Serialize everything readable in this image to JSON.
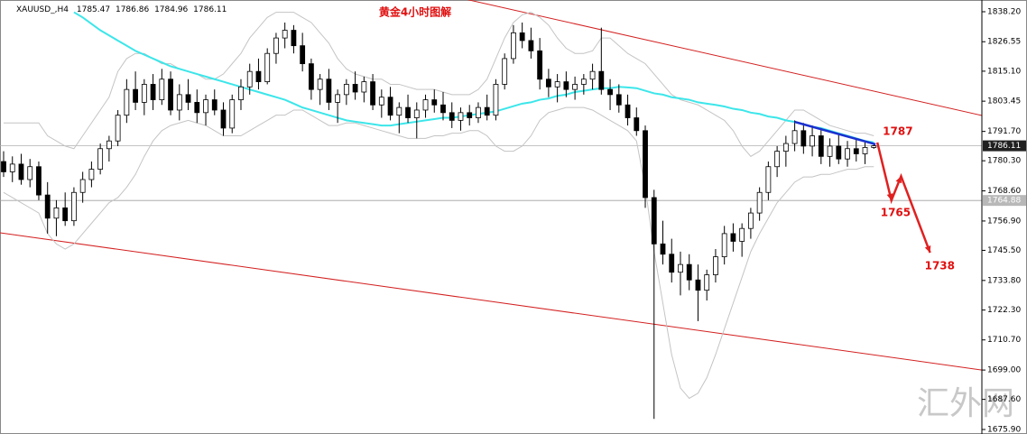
{
  "chart_data": {
    "type": "candlestick",
    "title": "黄金4小时图解",
    "symbol": "XAUUSD_,H4",
    "candles": [
      [
        1780,
        1784,
        1774,
        1776
      ],
      [
        1776,
        1782,
        1772,
        1779
      ],
      [
        1779,
        1783,
        1771,
        1773
      ],
      [
        1773,
        1781,
        1770,
        1778
      ],
      [
        1778,
        1780,
        1765,
        1767
      ],
      [
        1767,
        1772,
        1752,
        1758
      ],
      [
        1758,
        1765,
        1751,
        1762
      ],
      [
        1762,
        1768,
        1755,
        1757
      ],
      [
        1757,
        1770,
        1755,
        1768
      ],
      [
        1768,
        1776,
        1764,
        1773
      ],
      [
        1773,
        1780,
        1770,
        1777
      ],
      [
        1777,
        1787,
        1775,
        1785
      ],
      [
        1785,
        1790,
        1780,
        1788
      ],
      [
        1788,
        1800,
        1786,
        1798
      ],
      [
        1798,
        1812,
        1795,
        1808
      ],
      [
        1808,
        1815,
        1800,
        1803
      ],
      [
        1803,
        1812,
        1798,
        1810
      ],
      [
        1810,
        1814,
        1800,
        1804
      ],
      [
        1804,
        1816,
        1802,
        1812
      ],
      [
        1812,
        1815,
        1798,
        1800
      ],
      [
        1800,
        1810,
        1796,
        1806
      ],
      [
        1806,
        1812,
        1800,
        1803
      ],
      [
        1803,
        1808,
        1795,
        1799
      ],
      [
        1799,
        1806,
        1794,
        1804
      ],
      [
        1804,
        1808,
        1798,
        1800
      ],
      [
        1800,
        1803,
        1790,
        1793
      ],
      [
        1793,
        1806,
        1791,
        1804
      ],
      [
        1804,
        1812,
        1800,
        1809
      ],
      [
        1809,
        1818,
        1806,
        1815
      ],
      [
        1815,
        1820,
        1808,
        1811
      ],
      [
        1811,
        1824,
        1810,
        1822
      ],
      [
        1822,
        1830,
        1818,
        1828
      ],
      [
        1828,
        1834,
        1824,
        1831
      ],
      [
        1831,
        1833,
        1822,
        1825
      ],
      [
        1825,
        1830,
        1815,
        1818
      ],
      [
        1818,
        1820,
        1804,
        1808
      ],
      [
        1808,
        1814,
        1802,
        1812
      ],
      [
        1812,
        1816,
        1800,
        1803
      ],
      [
        1803,
        1808,
        1795,
        1806
      ],
      [
        1806,
        1812,
        1802,
        1810
      ],
      [
        1810,
        1815,
        1804,
        1807
      ],
      [
        1807,
        1813,
        1803,
        1811
      ],
      [
        1811,
        1814,
        1800,
        1802
      ],
      [
        1802,
        1808,
        1797,
        1805
      ],
      [
        1805,
        1809,
        1796,
        1798
      ],
      [
        1798,
        1803,
        1791,
        1801
      ],
      [
        1801,
        1806,
        1795,
        1797
      ],
      [
        1797,
        1803,
        1789,
        1800
      ],
      [
        1800,
        1806,
        1797,
        1804
      ],
      [
        1804,
        1808,
        1799,
        1802
      ],
      [
        1802,
        1807,
        1796,
        1799
      ],
      [
        1799,
        1803,
        1793,
        1796
      ],
      [
        1796,
        1801,
        1792,
        1799
      ],
      [
        1799,
        1802,
        1794,
        1797
      ],
      [
        1797,
        1803,
        1795,
        1801
      ],
      [
        1801,
        1806,
        1796,
        1798
      ],
      [
        1798,
        1812,
        1796,
        1810
      ],
      [
        1810,
        1822,
        1808,
        1820
      ],
      [
        1820,
        1833,
        1818,
        1830
      ],
      [
        1830,
        1834,
        1824,
        1827
      ],
      [
        1827,
        1832,
        1820,
        1823
      ],
      [
        1823,
        1828,
        1808,
        1812
      ],
      [
        1812,
        1816,
        1805,
        1809
      ],
      [
        1809,
        1814,
        1803,
        1811
      ],
      [
        1811,
        1815,
        1805,
        1808
      ],
      [
        1808,
        1813,
        1804,
        1810
      ],
      [
        1810,
        1814,
        1806,
        1812
      ],
      [
        1812,
        1818,
        1808,
        1815
      ],
      [
        1815,
        1832,
        1806,
        1808
      ],
      [
        1808,
        1812,
        1800,
        1806
      ],
      [
        1806,
        1810,
        1799,
        1802
      ],
      [
        1802,
        1806,
        1794,
        1797
      ],
      [
        1797,
        1801,
        1790,
        1792
      ],
      [
        1792,
        1794,
        1762,
        1766
      ],
      [
        1766,
        1769,
        1680,
        1748
      ],
      [
        1748,
        1757,
        1740,
        1744
      ],
      [
        1744,
        1750,
        1733,
        1737
      ],
      [
        1737,
        1745,
        1728,
        1740
      ],
      [
        1740,
        1744,
        1730,
        1734
      ],
      [
        1734,
        1740,
        1718,
        1730
      ],
      [
        1730,
        1738,
        1726,
        1736
      ],
      [
        1736,
        1746,
        1733,
        1743
      ],
      [
        1743,
        1755,
        1740,
        1752
      ],
      [
        1752,
        1756,
        1745,
        1749
      ],
      [
        1749,
        1756,
        1743,
        1754
      ],
      [
        1754,
        1762,
        1750,
        1760
      ],
      [
        1760,
        1770,
        1757,
        1768
      ],
      [
        1768,
        1780,
        1765,
        1778
      ],
      [
        1778,
        1786,
        1774,
        1784
      ],
      [
        1784,
        1790,
        1778,
        1787
      ],
      [
        1787,
        1796,
        1784,
        1792
      ],
      [
        1792,
        1795,
        1783,
        1786
      ],
      [
        1786,
        1794,
        1782,
        1790
      ],
      [
        1790,
        1793,
        1779,
        1782
      ],
      [
        1782,
        1789,
        1778,
        1786
      ],
      [
        1786,
        1791,
        1779,
        1781
      ],
      [
        1781,
        1788,
        1778,
        1785
      ],
      [
        1785,
        1789,
        1780,
        1783
      ],
      [
        1783,
        1788,
        1779,
        1785.47
      ],
      [
        1785.47,
        1786.86,
        1784.96,
        1786.11
      ]
    ],
    "ma": {
      "color": "#3ce6ea",
      "values": [
        null,
        null,
        null,
        null,
        null,
        null,
        null,
        null,
        1838,
        1836,
        1833.5,
        1831,
        1829,
        1827,
        1825,
        1823,
        1821.5,
        1820,
        1818.5,
        1817,
        1816,
        1815,
        1814,
        1813,
        1812,
        1811,
        1810,
        1809,
        1808,
        1807,
        1806,
        1805,
        1804,
        1802.5,
        1801,
        1800,
        1799,
        1798,
        1797,
        1796,
        1795.5,
        1795,
        1794.5,
        1794,
        1794,
        1794.5,
        1795,
        1795.5,
        1796,
        1796.5,
        1797,
        1797,
        1797.5,
        1798,
        1798.5,
        1799,
        1799.5,
        1800.5,
        1801.5,
        1802.5,
        1803,
        1804,
        1804.5,
        1805.5,
        1806,
        1807,
        1807.5,
        1808,
        1808.5,
        1808.5,
        1809,
        1808.8,
        1808.5,
        1807.5,
        1806.5,
        1806,
        1805,
        1804.5,
        1804,
        1803,
        1802.5,
        1802,
        1801.4,
        1800.5,
        1800,
        1799,
        1798.5,
        1797.5,
        1797,
        1796,
        1795.4,
        1794.5,
        1793.5,
        1793,
        1792,
        1791,
        1790,
        1789,
        1788,
        1787.4
      ]
    },
    "bands": {
      "color": "#c4c4c4",
      "upper": [
        1795,
        1795,
        1795,
        1795,
        1795,
        1790,
        1788,
        1786,
        1785,
        1790,
        1795,
        1800,
        1805,
        1815,
        1820,
        1822,
        1822,
        1820,
        1818,
        1818,
        1816,
        1815,
        1814,
        1812,
        1812,
        1814,
        1818,
        1822,
        1828,
        1832,
        1836,
        1838,
        1838,
        1838,
        1836,
        1834,
        1830,
        1826,
        1820,
        1816,
        1814,
        1813,
        1812,
        1812,
        1810,
        1810,
        1809,
        1808,
        1808,
        1808,
        1807,
        1806,
        1806,
        1806,
        1808,
        1812,
        1820,
        1828,
        1834,
        1837,
        1838,
        1836,
        1833,
        1828,
        1824,
        1822,
        1822,
        1823,
        1828,
        1828,
        1825,
        1822,
        1820,
        1818,
        1814,
        1810,
        1806,
        1804,
        1803,
        1802,
        1800,
        1798,
        1796,
        1792,
        1786,
        1782,
        1784,
        1788,
        1792,
        1796,
        1800,
        1800,
        1798,
        1796,
        1794,
        1793,
        1792,
        1791,
        1791,
        1790
      ],
      "lower": [
        1768,
        1766,
        1764,
        1762,
        1760,
        1752,
        1748,
        1746,
        1748,
        1752,
        1756,
        1760,
        1764,
        1766,
        1770,
        1775,
        1782,
        1788,
        1792,
        1794,
        1795,
        1796,
        1795,
        1794,
        1792,
        1790,
        1790,
        1790,
        1792,
        1794,
        1796,
        1798,
        1798,
        1800,
        1800,
        1798,
        1796,
        1794,
        1794,
        1795,
        1795,
        1794,
        1793,
        1792,
        1791,
        1790,
        1789,
        1789,
        1789,
        1790,
        1790,
        1791,
        1791,
        1792,
        1792,
        1790,
        1786,
        1784,
        1784,
        1786,
        1790,
        1796,
        1799,
        1800,
        1801,
        1801,
        1801,
        1800,
        1798,
        1796,
        1794,
        1792,
        1788,
        1770,
        1745,
        1725,
        1705,
        1692,
        1688,
        1690,
        1696,
        1705,
        1715,
        1725,
        1735,
        1745,
        1752,
        1758,
        1764,
        1768,
        1772,
        1774,
        1774,
        1775,
        1775,
        1776,
        1777,
        1777,
        1778,
        1778
      ]
    },
    "channel": {
      "color": "#d42020",
      "lines": [
        [
          1883.8,
          1797.9
        ],
        [
          1752.3,
          1699.0
        ]
      ]
    },
    "trendline": {
      "color": "#1a2fd0",
      "x": [
        90,
        99.2
      ],
      "y": [
        1795.4,
        1786.7
      ]
    },
    "forecast": {
      "color": "#e02020",
      "x": [
        99.4,
        101,
        102.1,
        105.4
      ],
      "y": [
        1787.4,
        1764.9,
        1774.3,
        1744.6
      ]
    },
    "annotations": [
      "1787",
      "1765",
      "1738"
    ],
    "levels": [
      1764.88
    ],
    "ylim": [
      1675.9,
      1838.2
    ],
    "yticks": [
      {
        "value": 1838.2,
        "label": "1838.20"
      },
      1826.55,
      {
        "value": 1815.1,
        "label": "1815.10"
      },
      1803.45,
      {
        "value": 1791.7,
        "label": "1791.70"
      },
      {
        "value": 1780.3,
        "label": "1780.30"
      },
      {
        "value": 1768.6,
        "label": "1768.60"
      },
      {
        "value": 1756.9,
        "label": "1756.90"
      },
      {
        "value": 1745.5,
        "label": "1745.50"
      },
      {
        "value": 1733.8,
        "label": "1733.80"
      },
      {
        "value": 1722.3,
        "label": "1722.30"
      },
      {
        "value": 1710.7,
        "label": "1710.70"
      },
      {
        "value": 1699,
        "label": "1699.00"
      },
      {
        "value": 1687.6,
        "label": "1687.60"
      },
      {
        "value": 1675.9,
        "label": "1675.90"
      }
    ],
    "watermark": "汇外网"
  }
}
